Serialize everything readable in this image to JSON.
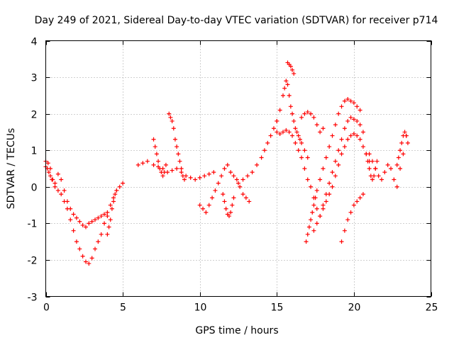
{
  "chart_data": {
    "type": "scatter",
    "title": "Day 249 of 2021, Sidereal Day-to-day VTEC variation (SDTVAR) for receiver p714",
    "xlabel": "GPS time / hours",
    "ylabel": "SDTVAR / TECUs",
    "xlim": [
      0,
      25
    ],
    "ylim": [
      -3,
      4
    ],
    "xticks": [
      0,
      5,
      10,
      15,
      20,
      25
    ],
    "yticks": [
      -3,
      -2,
      -1,
      0,
      1,
      2,
      3,
      4
    ],
    "xtick_labels": [
      "0",
      "5",
      "10",
      "15",
      "20",
      "25"
    ],
    "ytick_labels": [
      "-3",
      "-2",
      "-1",
      "0",
      "1",
      "2",
      "3",
      "4"
    ],
    "grid": true,
    "marker": "plus",
    "marker_color": "#ff0000",
    "series": [
      {
        "name": "s1",
        "x": [
          0.0,
          0.15,
          0.3,
          0.45,
          0.6,
          0.8,
          1.0,
          1.2,
          1.4,
          1.6,
          1.8,
          2.0,
          2.2,
          2.4,
          2.6,
          2.8,
          3.0,
          3.2,
          3.4,
          3.6,
          3.8,
          4.0,
          4.2,
          4.4,
          4.6,
          4.8,
          5.0
        ],
        "y": [
          0.7,
          0.65,
          0.5,
          0.2,
          0.0,
          -0.1,
          -0.2,
          -0.4,
          -0.6,
          -0.9,
          -1.2,
          -1.5,
          -1.7,
          -1.9,
          -2.05,
          -2.1,
          -1.95,
          -1.7,
          -1.5,
          -1.3,
          -1.0,
          -0.8,
          -0.5,
          -0.3,
          -0.1,
          0.0,
          0.1
        ]
      },
      {
        "name": "s2",
        "x": [
          0.0,
          0.1,
          0.2,
          0.3,
          0.4,
          0.6,
          0.8,
          1.0,
          1.2,
          1.4,
          1.6,
          1.8,
          2.0,
          2.2,
          2.4,
          2.6,
          2.8,
          3.0,
          3.2,
          3.4,
          3.6,
          3.8,
          4.0
        ],
        "y": [
          0.55,
          0.5,
          0.4,
          0.3,
          0.2,
          0.1,
          0.35,
          0.2,
          -0.1,
          -0.4,
          -0.6,
          -0.75,
          -0.85,
          -0.95,
          -1.05,
          -1.1,
          -1.0,
          -0.95,
          -0.9,
          -0.85,
          -0.8,
          -0.75,
          -0.7
        ]
      },
      {
        "name": "s3",
        "x": [
          4.0,
          4.1,
          4.2,
          4.3,
          4.4,
          4.5,
          4.6
        ],
        "y": [
          -1.3,
          -1.1,
          -0.9,
          -0.6,
          -0.4,
          -0.2,
          -0.1
        ]
      },
      {
        "name": "s4",
        "x": [
          6.0,
          6.3,
          6.6,
          7.0,
          7.3,
          7.6,
          7.9,
          8.2,
          8.5,
          8.8,
          9.1,
          9.4,
          9.7,
          10.0,
          10.3,
          10.6,
          10.9
        ],
        "y": [
          0.6,
          0.65,
          0.7,
          0.6,
          0.55,
          0.5,
          0.4,
          0.45,
          0.5,
          0.4,
          0.3,
          0.25,
          0.2,
          0.25,
          0.3,
          0.35,
          0.4
        ]
      },
      {
        "name": "s5",
        "x": [
          8.0,
          8.1,
          8.2,
          8.3,
          8.4,
          8.5,
          8.6,
          8.7,
          8.8,
          8.9,
          9.0
        ],
        "y": [
          2.0,
          1.9,
          1.8,
          1.6,
          1.3,
          1.1,
          0.9,
          0.7,
          0.5,
          0.3,
          0.2
        ]
      },
      {
        "name": "s6",
        "x": [
          7.0,
          7.1,
          7.2,
          7.3,
          7.4,
          7.5,
          7.6,
          7.7,
          7.8
        ],
        "y": [
          1.3,
          1.1,
          0.9,
          0.7,
          0.5,
          0.4,
          0.3,
          0.4,
          0.6
        ]
      },
      {
        "name": "s7",
        "x": [
          10.0,
          10.2,
          10.4,
          10.6,
          10.8,
          11.0,
          11.2,
          11.4,
          11.6,
          11.8,
          12.0,
          12.2,
          12.4,
          12.6,
          12.8,
          13.0,
          13.2
        ],
        "y": [
          -0.5,
          -0.6,
          -0.7,
          -0.5,
          -0.3,
          -0.1,
          0.1,
          0.3,
          0.5,
          0.6,
          0.4,
          0.3,
          0.2,
          0.0,
          -0.2,
          -0.3,
          -0.4
        ]
      },
      {
        "name": "s8",
        "x": [
          11.5,
          11.6,
          11.7,
          11.8,
          11.9,
          12.0,
          12.1,
          12.2
        ],
        "y": [
          -0.2,
          -0.4,
          -0.6,
          -0.75,
          -0.8,
          -0.7,
          -0.5,
          -0.3
        ]
      },
      {
        "name": "s9",
        "x": [
          12.5,
          12.8,
          13.1,
          13.4,
          13.7,
          14.0,
          14.2,
          14.4,
          14.6,
          14.8,
          15.0
        ],
        "y": [
          0.1,
          0.2,
          0.3,
          0.4,
          0.6,
          0.8,
          1.0,
          1.2,
          1.4,
          1.6,
          1.8
        ]
      },
      {
        "name": "s10",
        "x": [
          15.0,
          15.2,
          15.4,
          15.5,
          15.6,
          15.7,
          15.8,
          15.9,
          16.0,
          16.1,
          16.2,
          16.3,
          16.4,
          16.5,
          16.6,
          16.8,
          17.0
        ],
        "y": [
          1.8,
          2.1,
          2.5,
          2.7,
          2.9,
          2.8,
          2.5,
          2.2,
          2.0,
          1.8,
          1.6,
          1.5,
          1.4,
          1.3,
          1.2,
          1.0,
          0.8
        ]
      },
      {
        "name": "s11",
        "x": [
          15.7,
          15.8,
          15.9,
          16.0,
          16.1
        ],
        "y": [
          3.4,
          3.35,
          3.3,
          3.2,
          3.1
        ]
      },
      {
        "name": "s12",
        "x": [
          15.0,
          15.2,
          15.4,
          15.6,
          15.8,
          16.0,
          16.2,
          16.4,
          16.6,
          16.8,
          17.0,
          17.2,
          17.4,
          17.6
        ],
        "y": [
          1.5,
          1.45,
          1.5,
          1.55,
          1.5,
          1.4,
          1.2,
          1.0,
          0.8,
          0.5,
          0.2,
          0.0,
          -0.3,
          -0.6
        ]
      },
      {
        "name": "s13",
        "x": [
          16.6,
          16.8,
          17.0,
          17.2,
          17.4,
          17.6,
          17.8,
          18.0
        ],
        "y": [
          1.9,
          2.0,
          2.05,
          2.0,
          1.9,
          1.7,
          1.5,
          1.6
        ]
      },
      {
        "name": "s14",
        "x": [
          16.9,
          17.0,
          17.1,
          17.2,
          17.3,
          17.4,
          17.5,
          17.6,
          17.8,
          18.0,
          18.2,
          18.4,
          18.6,
          18.8,
          19.0,
          19.2,
          19.4,
          19.6,
          19.8,
          20.0,
          20.2,
          20.4
        ],
        "y": [
          -1.5,
          -1.3,
          -1.1,
          -0.9,
          -0.7,
          -0.5,
          -0.3,
          -0.1,
          0.2,
          0.5,
          0.8,
          1.1,
          1.4,
          1.7,
          2.0,
          2.2,
          2.35,
          2.4,
          2.35,
          2.3,
          2.2,
          2.1
        ]
      },
      {
        "name": "s15",
        "x": [
          17.4,
          17.6,
          17.8,
          18.0,
          18.2,
          18.4,
          18.6,
          18.8,
          19.0,
          19.2,
          19.4,
          19.6,
          19.8,
          20.0,
          20.2,
          20.4,
          20.6
        ],
        "y": [
          -1.2,
          -1.0,
          -0.8,
          -0.5,
          -0.2,
          0.1,
          0.4,
          0.7,
          1.0,
          1.3,
          1.6,
          1.8,
          1.9,
          1.85,
          1.8,
          1.7,
          1.5
        ]
      },
      {
        "name": "s16",
        "x": [
          17.8,
          18.0,
          18.2,
          18.4,
          18.6,
          18.8,
          19.0,
          19.2,
          19.4,
          19.6,
          19.8,
          20.0,
          20.2,
          20.4,
          20.6,
          20.8,
          21.0
        ],
        "y": [
          -0.8,
          -0.6,
          -0.4,
          -0.2,
          0.0,
          0.3,
          0.6,
          0.9,
          1.1,
          1.3,
          1.4,
          1.45,
          1.4,
          1.3,
          1.1,
          0.9,
          0.7
        ]
      },
      {
        "name": "s17",
        "x": [
          19.2,
          19.4,
          19.6,
          19.8,
          20.0,
          20.2,
          20.4,
          20.6
        ],
        "y": [
          -1.5,
          -1.2,
          -0.9,
          -0.7,
          -0.5,
          -0.4,
          -0.3,
          -0.2
        ]
      },
      {
        "name": "s18",
        "x": [
          21.0,
          21.2,
          21.4,
          21.6,
          21.8,
          22.0,
          22.2,
          22.4,
          22.6,
          22.8,
          23.0,
          23.2,
          23.4
        ],
        "y": [
          0.9,
          0.7,
          0.5,
          0.3,
          0.2,
          0.4,
          0.6,
          0.5,
          0.2,
          0.0,
          0.5,
          0.9,
          1.4
        ]
      },
      {
        "name": "s19",
        "x": [
          22.8,
          22.9,
          23.0,
          23.1,
          23.2,
          23.3,
          23.4,
          23.5
        ],
        "y": [
          0.6,
          0.8,
          1.0,
          1.2,
          1.4,
          1.5,
          1.4,
          1.2
        ]
      },
      {
        "name": "s20",
        "x": [
          20.8,
          20.9,
          21.0,
          21.1,
          21.2,
          21.3,
          21.4,
          21.5
        ],
        "y": [
          0.9,
          0.7,
          0.5,
          0.3,
          0.2,
          0.3,
          0.5,
          0.7
        ]
      }
    ]
  }
}
